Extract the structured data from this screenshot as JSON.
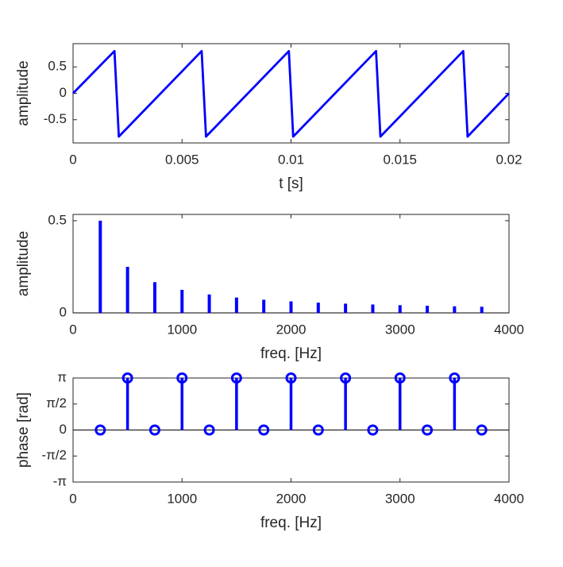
{
  "chart_data": [
    {
      "type": "line",
      "xlabel": "t [s]",
      "ylabel": "amplitude",
      "color": "#0000ff",
      "x": [
        0,
        0.0019,
        0.0021,
        0.0059,
        0.0061,
        0.0099,
        0.0101,
        0.0139,
        0.0141,
        0.0179,
        0.0181,
        0.02
      ],
      "values": [
        0,
        0.8,
        -0.82,
        0.8,
        -0.82,
        0.8,
        -0.82,
        0.8,
        -0.82,
        0.8,
        -0.82,
        0
      ],
      "xlim": [
        0,
        0.02
      ],
      "xticks": [
        0,
        0.005,
        0.01,
        0.015,
        0.02
      ],
      "ylim": [
        -0.94,
        0.94
      ],
      "yticks": [
        -0.5,
        0,
        0.5
      ]
    },
    {
      "type": "stem",
      "marker": "none",
      "xlabel": "freq. [Hz]",
      "ylabel": "amplitude",
      "color": "#0000ff",
      "x": [
        250,
        500,
        750,
        1000,
        1250,
        1500,
        1750,
        2000,
        2250,
        2500,
        2750,
        3000,
        3250,
        3500,
        3750
      ],
      "values": [
        0.5,
        0.25,
        0.1667,
        0.125,
        0.1,
        0.0833,
        0.0714,
        0.0625,
        0.0556,
        0.05,
        0.0455,
        0.0417,
        0.0385,
        0.0357,
        0.0333
      ],
      "xlim": [
        0,
        4000
      ],
      "xticks": [
        0,
        1000,
        2000,
        3000,
        4000
      ],
      "ylim": [
        0,
        0.534
      ],
      "yticks": [
        0,
        0.5
      ]
    },
    {
      "type": "stem",
      "marker": "circle",
      "xlabel": "freq. [Hz]",
      "ylabel": "phase [rad]",
      "color": "#0000ff",
      "x": [
        250,
        500,
        750,
        1000,
        1250,
        1500,
        1750,
        2000,
        2250,
        2500,
        2750,
        3000,
        3250,
        3500,
        3750
      ],
      "values": [
        0,
        3.141592653589793,
        0,
        3.141592653589793,
        0,
        3.141592653589793,
        0,
        3.141592653589793,
        0,
        3.141592653589793,
        0,
        3.141592653589793,
        0,
        3.141592653589793,
        0
      ],
      "xlim": [
        0,
        4000
      ],
      "xticks": [
        0,
        1000,
        2000,
        3000,
        4000
      ],
      "ylim": [
        -3.141592653589793,
        3.141592653589793
      ],
      "yticks": [
        {
          "value": -3.141592653589793,
          "label": "-π"
        },
        {
          "value": -1.5707963267948966,
          "label": "-π/2"
        },
        0,
        {
          "value": 1.5707963267948966,
          "label": "π/2"
        },
        {
          "value": 3.141592653589793,
          "label": "π"
        }
      ]
    }
  ]
}
